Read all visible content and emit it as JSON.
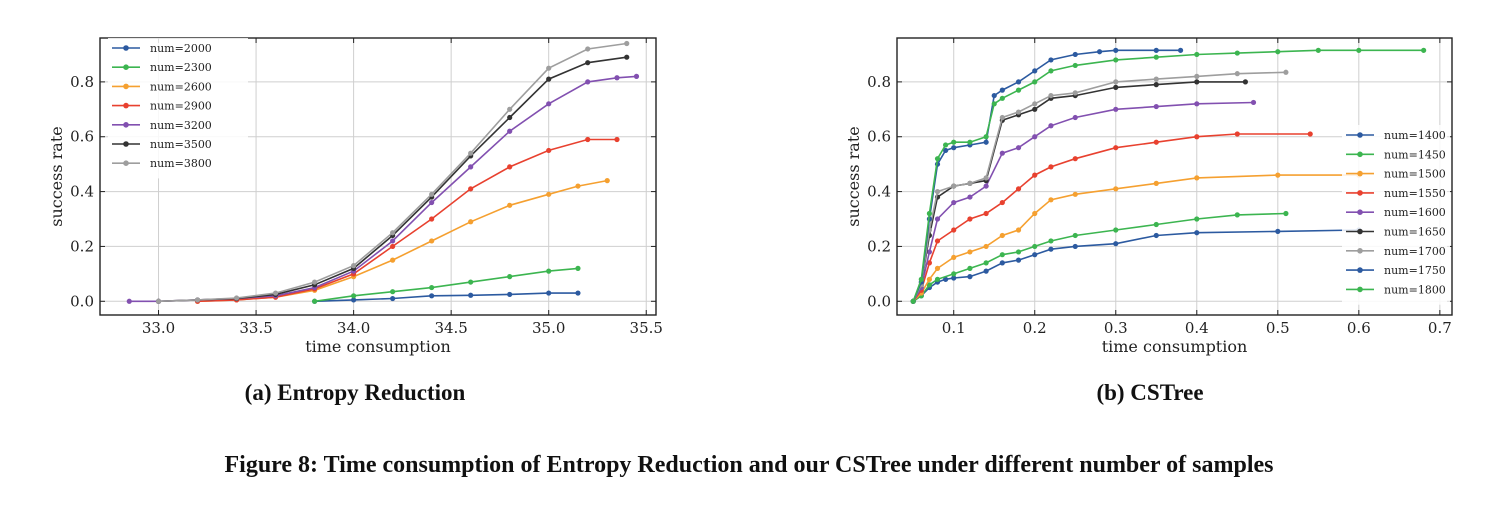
{
  "figure": {
    "caption": "Figure 8: Time consumption of Entropy Reduction and our CSTree under different number of samples"
  },
  "chart_data": [
    {
      "type": "line",
      "subcaption": "(a) Entropy Reduction",
      "xlabel": "time consumption",
      "ylabel": "success rate",
      "xlim": [
        32.7,
        35.55
      ],
      "ylim": [
        -0.05,
        0.96
      ],
      "xticks": [
        "33.0",
        "33.5",
        "34.0",
        "34.5",
        "35.0",
        "35.5"
      ],
      "xtick_values": [
        33.0,
        33.5,
        34.0,
        34.5,
        35.0,
        35.5
      ],
      "yticks": [
        "0.0",
        "0.2",
        "0.4",
        "0.6",
        "0.8"
      ],
      "ytick_values": [
        0.0,
        0.2,
        0.4,
        0.6,
        0.8
      ],
      "grid": true,
      "legend": "top-left",
      "series": [
        {
          "name": "num=2000",
          "color": "#2c5aa0",
          "x": [
            33.8,
            34.0,
            34.2,
            34.4,
            34.6,
            34.8,
            35.0,
            35.15
          ],
          "y": [
            0.0,
            0.005,
            0.01,
            0.02,
            0.022,
            0.025,
            0.03,
            0.03
          ]
        },
        {
          "name": "num=2300",
          "color": "#3cb550",
          "x": [
            33.8,
            34.0,
            34.2,
            34.4,
            34.6,
            34.8,
            35.0,
            35.15
          ],
          "y": [
            0.0,
            0.02,
            0.035,
            0.05,
            0.07,
            0.09,
            0.11,
            0.12
          ]
        },
        {
          "name": "num=2600",
          "color": "#f5a030",
          "x": [
            33.2,
            33.4,
            33.6,
            33.8,
            34.0,
            34.2,
            34.4,
            34.6,
            34.8,
            35.0,
            35.15,
            35.3
          ],
          "y": [
            0.0,
            0.005,
            0.015,
            0.04,
            0.09,
            0.15,
            0.22,
            0.29,
            0.35,
            0.39,
            0.42,
            0.44
          ]
        },
        {
          "name": "num=2900",
          "color": "#e8412f",
          "x": [
            33.2,
            33.4,
            33.6,
            33.8,
            34.0,
            34.2,
            34.4,
            34.6,
            34.8,
            35.0,
            35.2,
            35.35
          ],
          "y": [
            0.0,
            0.005,
            0.015,
            0.045,
            0.1,
            0.2,
            0.3,
            0.41,
            0.49,
            0.55,
            0.59,
            0.59
          ]
        },
        {
          "name": "num=3200",
          "color": "#8250b0",
          "x": [
            32.85,
            33.0,
            33.2,
            33.4,
            33.6,
            33.8,
            34.0,
            34.2,
            34.4,
            34.6,
            34.8,
            35.0,
            35.2,
            35.35,
            35.45
          ],
          "y": [
            0.0,
            0.0,
            0.005,
            0.01,
            0.02,
            0.05,
            0.11,
            0.22,
            0.36,
            0.49,
            0.62,
            0.72,
            0.8,
            0.815,
            0.82
          ]
        },
        {
          "name": "num=3500",
          "color": "#333333",
          "x": [
            33.0,
            33.2,
            33.4,
            33.6,
            33.8,
            34.0,
            34.2,
            34.4,
            34.6,
            34.8,
            35.0,
            35.2,
            35.4
          ],
          "y": [
            0.0,
            0.005,
            0.01,
            0.025,
            0.06,
            0.12,
            0.24,
            0.38,
            0.53,
            0.67,
            0.81,
            0.87,
            0.89
          ]
        },
        {
          "name": "num=3800",
          "color": "#9e9e9e",
          "x": [
            33.0,
            33.2,
            33.4,
            33.6,
            33.8,
            34.0,
            34.2,
            34.4,
            34.6,
            34.8,
            35.0,
            35.2,
            35.4
          ],
          "y": [
            0.0,
            0.005,
            0.012,
            0.03,
            0.07,
            0.13,
            0.25,
            0.39,
            0.54,
            0.7,
            0.85,
            0.92,
            0.94
          ]
        }
      ]
    },
    {
      "type": "line",
      "subcaption": "(b) CSTree",
      "xlabel": "time consumption",
      "ylabel": "success rate",
      "xlim": [
        0.03,
        0.715
      ],
      "ylim": [
        -0.05,
        0.96
      ],
      "xticks": [
        "0.1",
        "0.2",
        "0.3",
        "0.4",
        "0.5",
        "0.6",
        "0.7"
      ],
      "xtick_values": [
        0.1,
        0.2,
        0.3,
        0.4,
        0.5,
        0.6,
        0.7
      ],
      "yticks": [
        "0.0",
        "0.2",
        "0.4",
        "0.6",
        "0.8"
      ],
      "ytick_values": [
        0.0,
        0.2,
        0.4,
        0.6,
        0.8
      ],
      "grid": true,
      "legend": "center-right",
      "series": [
        {
          "name": "num=1400",
          "color": "#2c5aa0",
          "x": [
            0.05,
            0.06,
            0.07,
            0.08,
            0.09,
            0.1,
            0.12,
            0.14,
            0.16,
            0.18,
            0.2,
            0.22,
            0.25,
            0.3,
            0.35,
            0.4,
            0.5,
            0.6
          ],
          "y": [
            0.0,
            0.02,
            0.05,
            0.07,
            0.08,
            0.085,
            0.09,
            0.11,
            0.14,
            0.15,
            0.17,
            0.19,
            0.2,
            0.21,
            0.24,
            0.25,
            0.255,
            0.26
          ]
        },
        {
          "name": "num=1450",
          "color": "#3cb550",
          "x": [
            0.05,
            0.06,
            0.07,
            0.08,
            0.1,
            0.12,
            0.14,
            0.16,
            0.18,
            0.2,
            0.22,
            0.25,
            0.3,
            0.35,
            0.4,
            0.45,
            0.51
          ],
          "y": [
            0.0,
            0.02,
            0.06,
            0.08,
            0.1,
            0.12,
            0.14,
            0.17,
            0.18,
            0.2,
            0.22,
            0.24,
            0.26,
            0.28,
            0.3,
            0.315,
            0.32
          ]
        },
        {
          "name": "num=1500",
          "color": "#f5a030",
          "x": [
            0.05,
            0.06,
            0.07,
            0.08,
            0.1,
            0.12,
            0.14,
            0.16,
            0.18,
            0.2,
            0.22,
            0.25,
            0.3,
            0.35,
            0.4,
            0.5,
            0.6
          ],
          "y": [
            0.0,
            0.03,
            0.08,
            0.12,
            0.16,
            0.18,
            0.2,
            0.24,
            0.26,
            0.32,
            0.37,
            0.39,
            0.41,
            0.43,
            0.45,
            0.46,
            0.46
          ]
        },
        {
          "name": "num=1550",
          "color": "#e8412f",
          "x": [
            0.05,
            0.06,
            0.07,
            0.08,
            0.1,
            0.12,
            0.14,
            0.16,
            0.18,
            0.2,
            0.22,
            0.25,
            0.3,
            0.35,
            0.4,
            0.45,
            0.54
          ],
          "y": [
            0.0,
            0.04,
            0.14,
            0.22,
            0.26,
            0.3,
            0.32,
            0.36,
            0.41,
            0.46,
            0.49,
            0.52,
            0.56,
            0.58,
            0.6,
            0.61,
            0.61
          ]
        },
        {
          "name": "num=1600",
          "color": "#8250b0",
          "x": [
            0.05,
            0.06,
            0.07,
            0.08,
            0.1,
            0.12,
            0.14,
            0.16,
            0.18,
            0.2,
            0.22,
            0.25,
            0.3,
            0.35,
            0.4,
            0.47
          ],
          "y": [
            0.0,
            0.05,
            0.18,
            0.3,
            0.36,
            0.38,
            0.42,
            0.54,
            0.56,
            0.6,
            0.64,
            0.67,
            0.7,
            0.71,
            0.72,
            0.725
          ]
        },
        {
          "name": "num=1650",
          "color": "#333333",
          "x": [
            0.05,
            0.06,
            0.07,
            0.08,
            0.1,
            0.12,
            0.14,
            0.16,
            0.18,
            0.2,
            0.22,
            0.25,
            0.3,
            0.35,
            0.4,
            0.46
          ],
          "y": [
            0.0,
            0.06,
            0.24,
            0.38,
            0.42,
            0.43,
            0.44,
            0.66,
            0.68,
            0.7,
            0.74,
            0.75,
            0.78,
            0.79,
            0.8,
            0.8
          ]
        },
        {
          "name": "num=1700",
          "color": "#9e9e9e",
          "x": [
            0.05,
            0.06,
            0.07,
            0.08,
            0.1,
            0.12,
            0.14,
            0.16,
            0.18,
            0.2,
            0.22,
            0.25,
            0.3,
            0.35,
            0.4,
            0.45,
            0.51
          ],
          "y": [
            0.0,
            0.06,
            0.26,
            0.4,
            0.42,
            0.43,
            0.45,
            0.67,
            0.69,
            0.72,
            0.75,
            0.76,
            0.8,
            0.81,
            0.82,
            0.83,
            0.835
          ]
        },
        {
          "name": "num=1750",
          "color": "#2c5aa0",
          "x": [
            0.05,
            0.06,
            0.07,
            0.08,
            0.09,
            0.1,
            0.12,
            0.14,
            0.15,
            0.16,
            0.18,
            0.2,
            0.22,
            0.25,
            0.28,
            0.3,
            0.35,
            0.38
          ],
          "y": [
            0.0,
            0.07,
            0.3,
            0.5,
            0.55,
            0.56,
            0.57,
            0.58,
            0.75,
            0.77,
            0.8,
            0.84,
            0.88,
            0.9,
            0.91,
            0.915,
            0.915,
            0.915
          ]
        },
        {
          "name": "num=1800",
          "color": "#3cb550",
          "x": [
            0.05,
            0.06,
            0.07,
            0.08,
            0.09,
            0.1,
            0.12,
            0.14,
            0.15,
            0.16,
            0.18,
            0.2,
            0.22,
            0.25,
            0.3,
            0.35,
            0.4,
            0.45,
            0.5,
            0.55,
            0.6,
            0.68
          ],
          "y": [
            0.0,
            0.08,
            0.32,
            0.52,
            0.57,
            0.58,
            0.58,
            0.6,
            0.72,
            0.74,
            0.77,
            0.8,
            0.84,
            0.86,
            0.88,
            0.89,
            0.9,
            0.905,
            0.91,
            0.915,
            0.915,
            0.915
          ]
        }
      ]
    }
  ]
}
